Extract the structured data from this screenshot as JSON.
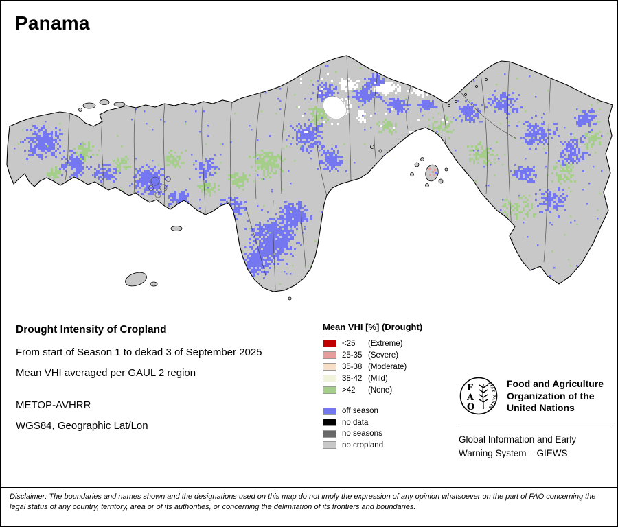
{
  "title": "Panama",
  "info": {
    "heading": "Drought Intensity of Cropland",
    "period": "From start of Season 1 to dekad 3 of September 2025",
    "method": "Mean VHI averaged per GAUL 2 region",
    "sensor": "METOP-AVHRR",
    "projection": "WGS84, Geographic Lat/Lon"
  },
  "legend": {
    "title": "Mean VHI [%] (Drought)",
    "classes": [
      {
        "label": "<25",
        "suffix": "(Extreme)",
        "color": "#c00000"
      },
      {
        "label": "25-35",
        "suffix": "(Severe)",
        "color": "#e89c9c"
      },
      {
        "label": "35-38",
        "suffix": "(Moderate)",
        "color": "#f8dfc8"
      },
      {
        "label": "38-42",
        "suffix": "(Mild)",
        "color": "#f1f3dc"
      },
      {
        "label": ">42",
        "suffix": "(None)",
        "color": "#a6ce8b"
      }
    ],
    "extras": [
      {
        "label": "off season",
        "color": "#7577f0"
      },
      {
        "label": "no data",
        "color": "#000000"
      },
      {
        "label": "no seasons",
        "color": "#686868"
      },
      {
        "label": "no cropland",
        "color": "#c8c8c8"
      }
    ]
  },
  "org": {
    "fao_line1": "Food and Agriculture",
    "fao_line2": "Organization of the",
    "fao_line3": "United Nations",
    "giews_line1": "Global Information and Early",
    "giews_line2": "Warning System – GIEWS",
    "logo_letters": "FAO",
    "logo_motto": "FIAT PANIS"
  },
  "disclaimer": "Disclaimer: The boundaries and names shown and the designations used on this map do not imply the expression of any opinion whatsoever on the part of FAO concerning the legal status of any country, territory, area or of its authorities, or concerning the delimitation of its frontiers and boundaries.",
  "map": {
    "colors": {
      "base": "#c8c8c8",
      "border": "#000000",
      "off_season": "#7577f0",
      "vhi_none_green": "#a6ce8b",
      "vhi_severe": "#e89c9c",
      "water_gap": "#ffffff"
    }
  }
}
